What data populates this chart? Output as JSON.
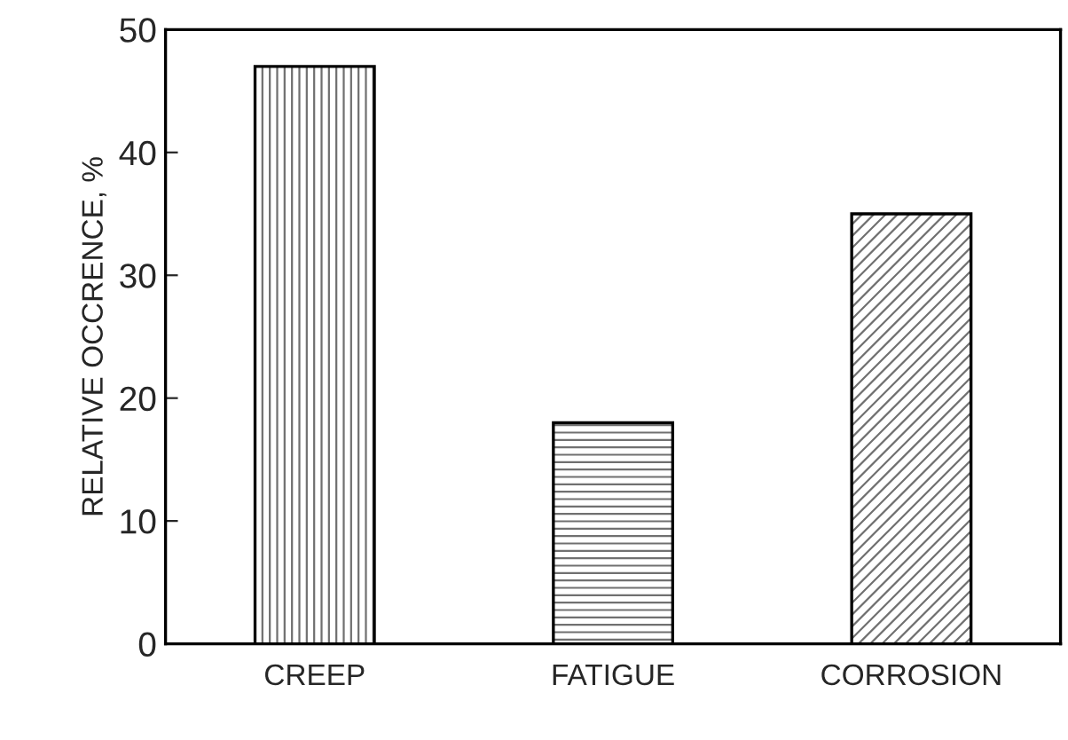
{
  "chart_data": {
    "type": "bar",
    "ylabel": "RELATIVE OCCRENCE, %",
    "categories": [
      "CREEP",
      "FATIGUE",
      "CORROSION"
    ],
    "values": [
      47,
      18,
      35
    ],
    "colors": [
      "#707070",
      "#707070",
      "#707070"
    ],
    "ylim": [
      0,
      50
    ],
    "yticks": [
      0,
      10,
      20,
      30,
      40,
      50
    ],
    "grid": false,
    "legend": false
  }
}
